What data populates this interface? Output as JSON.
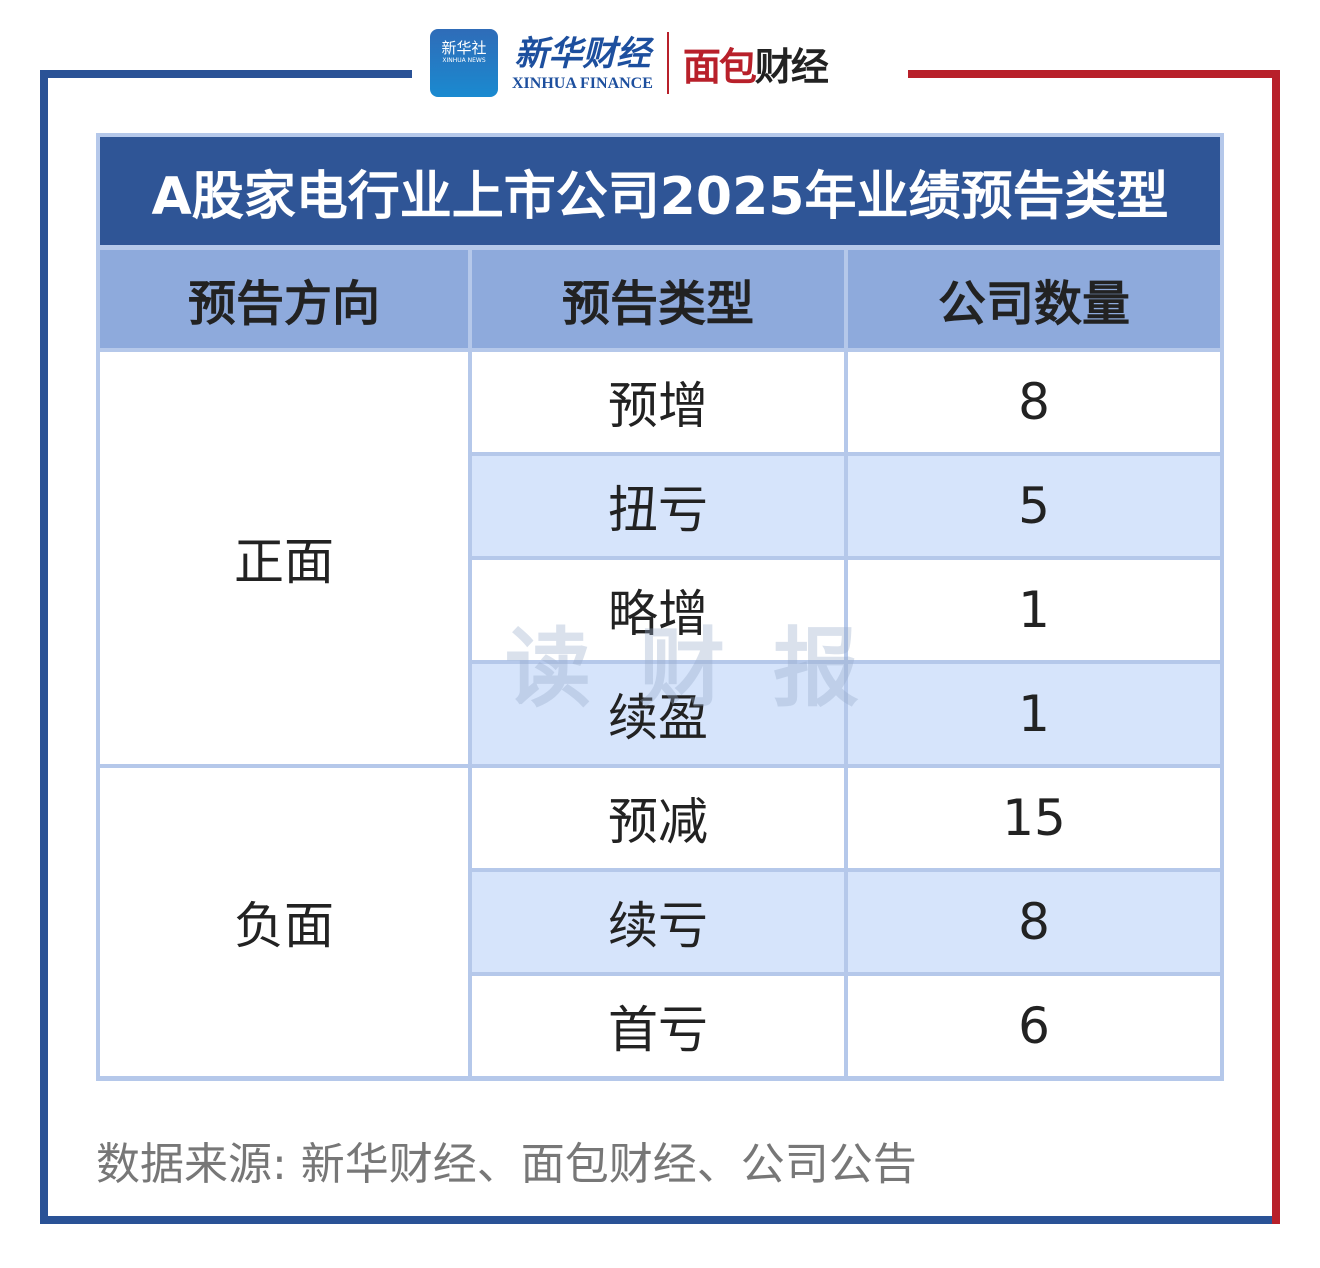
{
  "logos": {
    "xinhua_news_cn": "新华社",
    "xinhua_news_en": "XINHUA NEWS",
    "xinhua_finance_cn": "新华财经",
    "xinhua_finance_en": "XINHUA FINANCE",
    "mianbao_a": "面包",
    "mianbao_b": "财经"
  },
  "table": {
    "title": "A股家电行业上市公司2025年业绩预告类型",
    "headers": [
      "预告方向",
      "预告类型",
      "公司数量"
    ],
    "groups": [
      {
        "direction": "正面",
        "rows": [
          {
            "type": "预增",
            "count": "8"
          },
          {
            "type": "扭亏",
            "count": "5"
          },
          {
            "type": "略增",
            "count": "1"
          },
          {
            "type": "续盈",
            "count": "1"
          }
        ]
      },
      {
        "direction": "负面",
        "rows": [
          {
            "type": "预减",
            "count": "15"
          },
          {
            "type": "续亏",
            "count": "8"
          },
          {
            "type": "首亏",
            "count": "6"
          }
        ]
      }
    ]
  },
  "watermark": "读财报",
  "source": "数据来源: 新华财经、面包财经、公司公告",
  "colors": {
    "blue": "#2f5596",
    "red": "#b8202a",
    "header": "#8eaadc",
    "alt_row": "#d6e4fb"
  }
}
